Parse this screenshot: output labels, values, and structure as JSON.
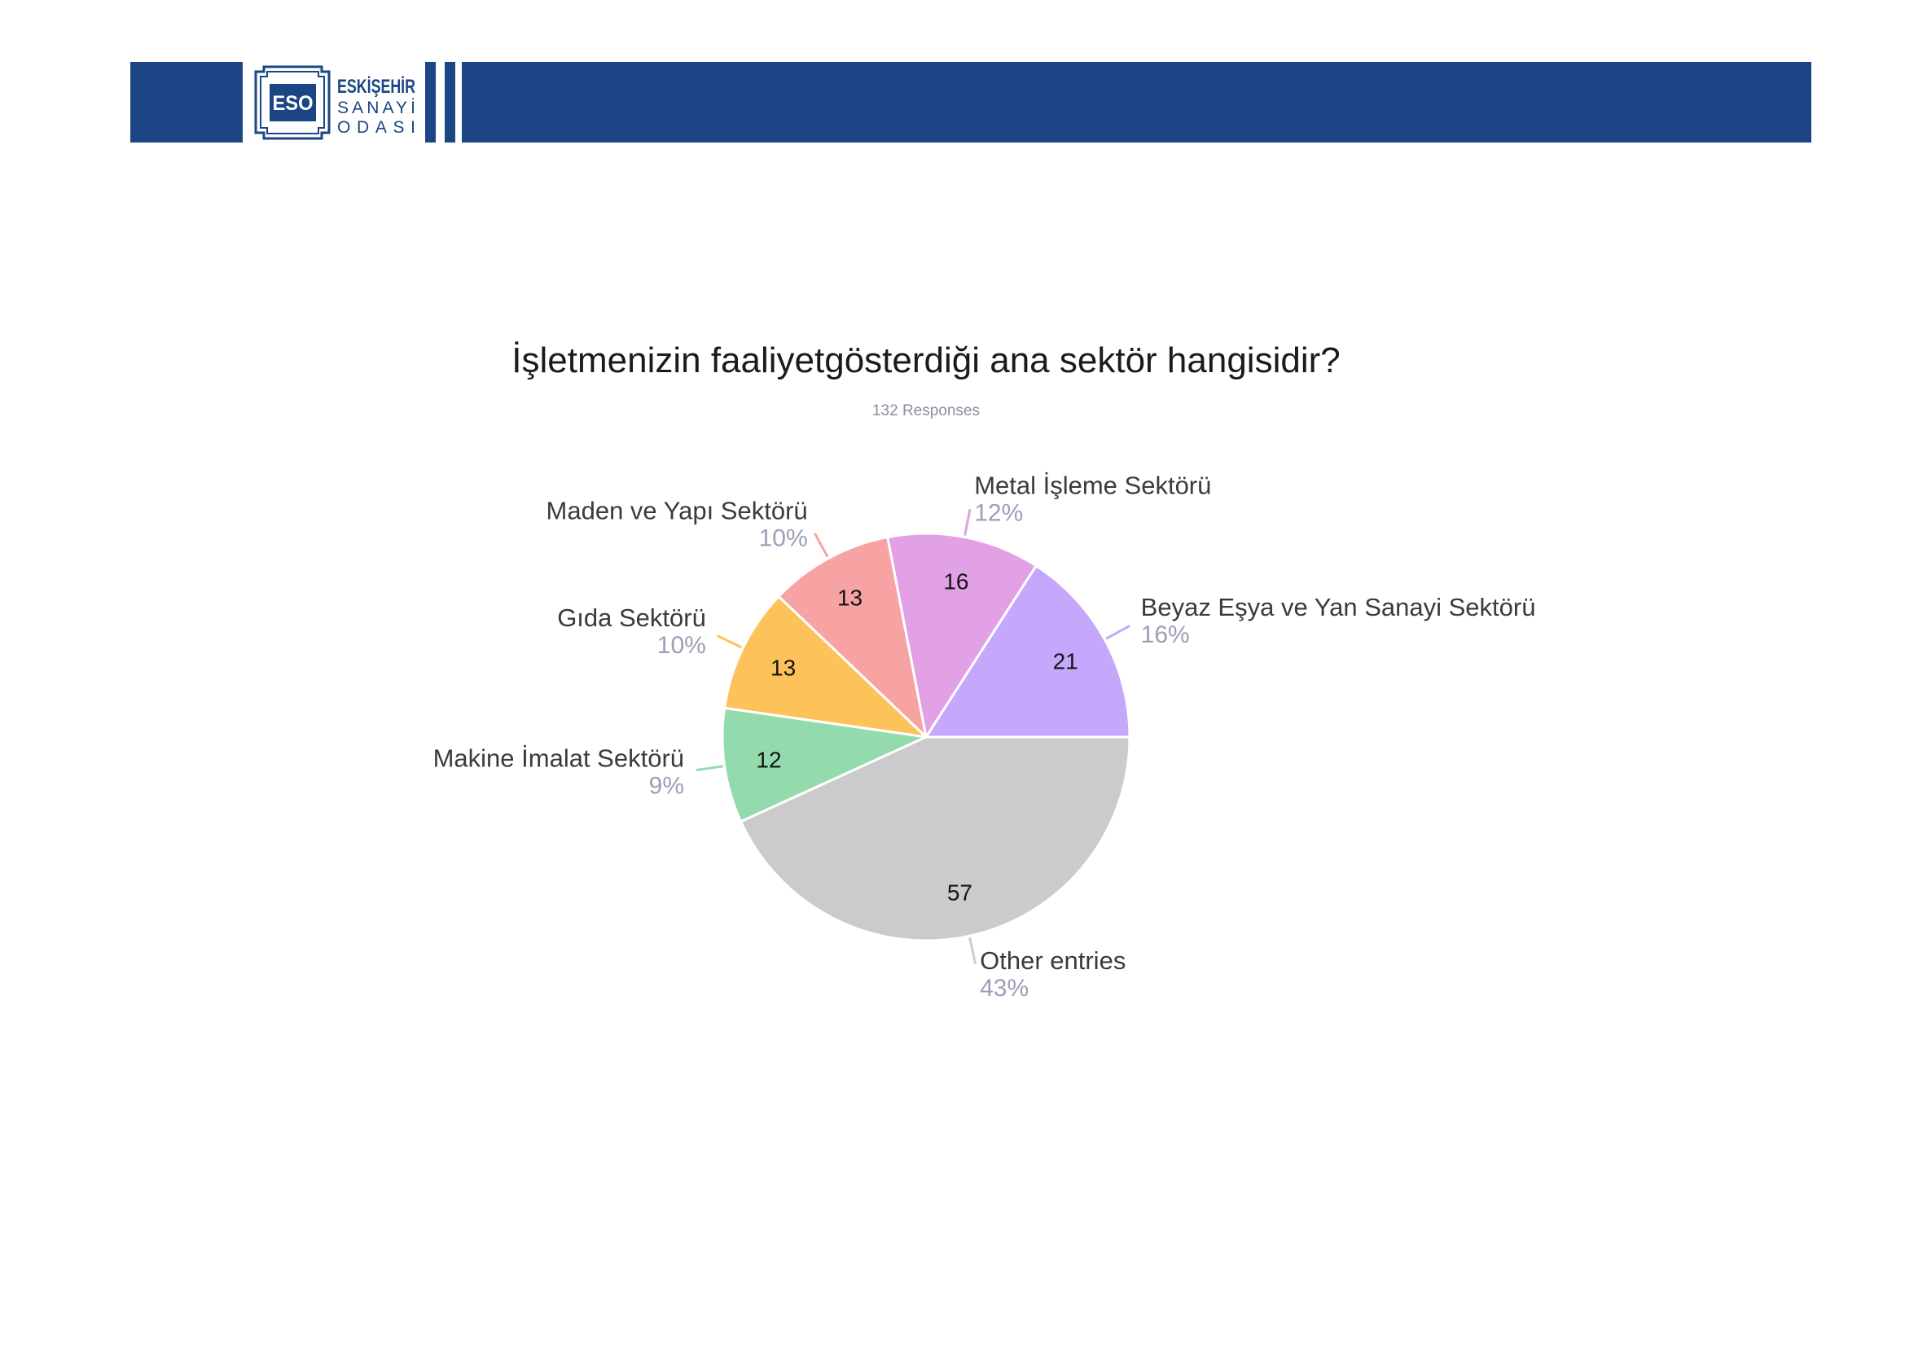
{
  "header": {
    "background_color": "#1c4585",
    "logo": {
      "mark": "ESO",
      "line1": "ESKİŞEHİR",
      "line2": "SANAYİ",
      "line3": "ODASI"
    }
  },
  "chart_data": {
    "type": "pie",
    "title": "İşletmenizin faaliyetgösterdiği ana sektör hangisidir?",
    "subtitle": "132 Responses",
    "categories": [
      "Beyaz Eşya ve Yan Sanayi Sektörü",
      "Metal İşleme Sektörü",
      "Maden ve Yapı Sektörü",
      "Gıda Sektörü",
      "Makine İmalat Sektörü",
      "Other entries"
    ],
    "values": [
      21,
      16,
      13,
      13,
      12,
      57
    ],
    "percent_labels": [
      "16%",
      "12%",
      "10%",
      "10%",
      "9%",
      "43%"
    ],
    "colors": [
      "#c5a8fb",
      "#e3a1e5",
      "#f8a3a3",
      "#fdc259",
      "#93dbac",
      "#cbcbcb"
    ]
  }
}
